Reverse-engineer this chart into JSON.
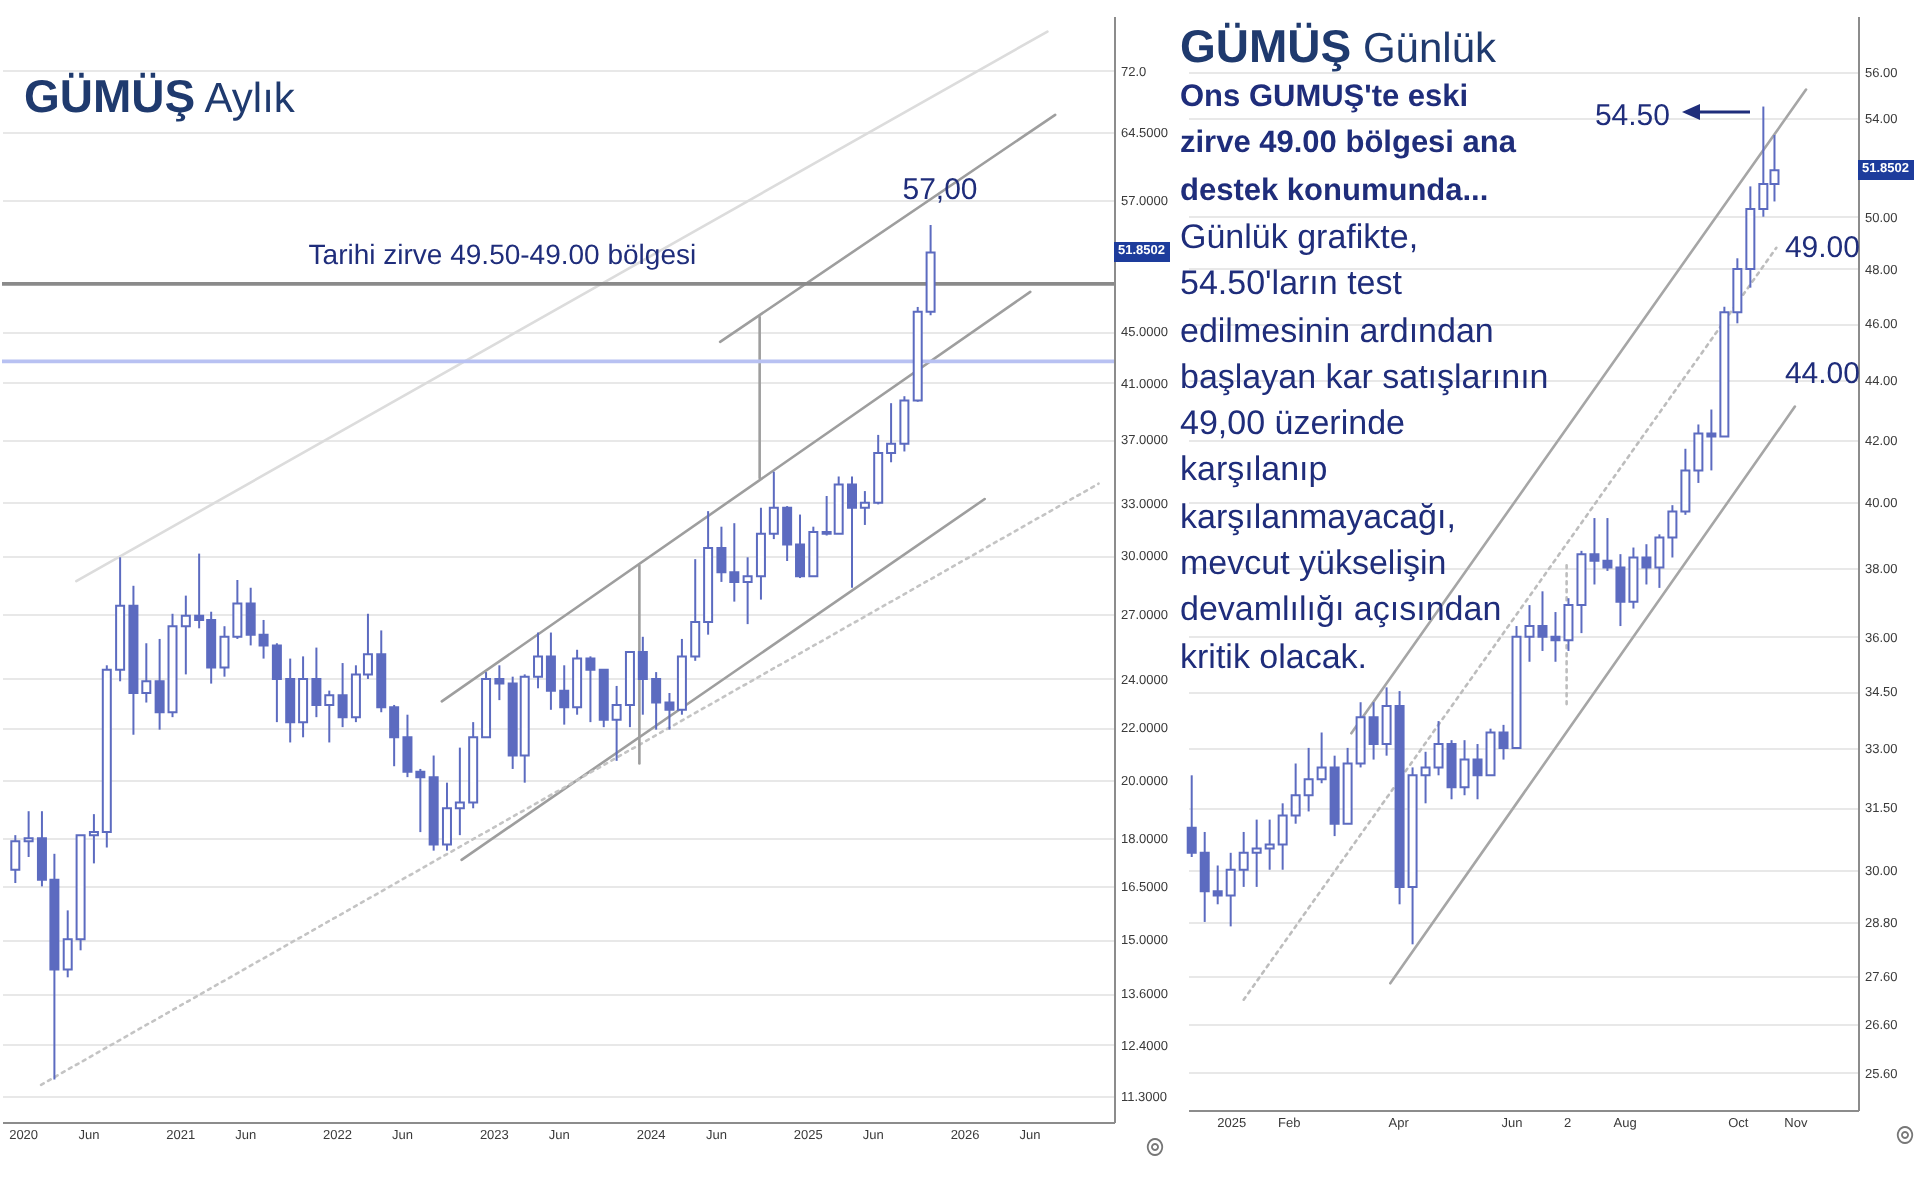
{
  "chart_data": [
    {
      "type": "candlestick",
      "title": "GÜMÜŞ Aylık",
      "color": "#5c6bc0",
      "x": [
        "2019-12-15",
        "2020-01-15",
        "2020-02-15",
        "2020-03-15",
        "2020-04-15",
        "2020-05-15",
        "2020-06-15",
        "2020-07-15",
        "2020-08-15",
        "2020-09-15",
        "2020-10-15",
        "2020-11-15",
        "2020-12-15",
        "2021-01-15",
        "2021-02-15",
        "2021-03-15",
        "2021-04-15",
        "2021-05-15",
        "2021-06-15",
        "2021-07-15",
        "2021-08-15",
        "2021-09-15",
        "2021-10-15",
        "2021-11-15",
        "2021-12-15",
        "2022-01-15",
        "2022-02-15",
        "2022-03-15",
        "2022-04-15",
        "2022-05-15",
        "2022-06-15",
        "2022-07-15",
        "2022-08-15",
        "2022-09-15",
        "2022-10-15",
        "2022-11-15",
        "2022-12-15",
        "2023-01-15",
        "2023-02-15",
        "2023-03-15",
        "2023-04-15",
        "2023-05-15",
        "2023-06-15",
        "2023-07-15",
        "2023-08-15",
        "2023-09-15",
        "2023-10-15",
        "2023-11-15",
        "2023-12-15",
        "2024-01-15",
        "2024-02-15",
        "2024-03-15",
        "2024-04-15",
        "2024-05-15",
        "2024-06-15",
        "2024-07-15",
        "2024-08-15",
        "2024-09-15",
        "2024-10-15",
        "2024-11-15",
        "2024-12-15",
        "2025-01-15",
        "2025-02-15",
        "2025-03-15",
        "2025-04-15",
        "2025-05-15",
        "2025-06-15",
        "2025-07-15",
        "2025-08-15",
        "2025-09-15",
        "2025-10-15"
      ],
      "ohlc": [
        [
          17.0,
          18.1,
          16.6,
          17.9
        ],
        [
          17.9,
          18.9,
          17.4,
          18.0
        ],
        [
          18.0,
          18.9,
          16.5,
          16.7
        ],
        [
          16.7,
          17.5,
          11.64,
          14.2
        ],
        [
          14.2,
          15.8,
          14.0,
          15.0
        ],
        [
          15.0,
          18.1,
          14.7,
          18.1
        ],
        [
          18.1,
          18.8,
          17.2,
          18.2
        ],
        [
          18.2,
          24.6,
          17.7,
          24.4
        ],
        [
          24.4,
          29.9,
          23.9,
          27.4
        ],
        [
          27.4,
          28.4,
          21.7,
          23.4
        ],
        [
          23.4,
          25.6,
          23.0,
          23.9
        ],
        [
          23.9,
          25.8,
          21.9,
          22.6
        ],
        [
          22.6,
          27.0,
          22.4,
          26.4
        ],
        [
          26.4,
          27.9,
          24.2,
          26.9
        ],
        [
          26.9,
          30.1,
          26.3,
          26.7
        ],
        [
          26.7,
          27.1,
          23.8,
          24.5
        ],
        [
          24.5,
          26.4,
          24.1,
          25.9
        ],
        [
          25.9,
          28.7,
          25.8,
          27.5
        ],
        [
          27.5,
          28.3,
          25.5,
          26.0
        ],
        [
          26.0,
          26.7,
          24.9,
          25.5
        ],
        [
          25.5,
          25.6,
          22.2,
          24.0
        ],
        [
          24.0,
          24.9,
          21.4,
          22.2
        ],
        [
          22.2,
          25.0,
          21.6,
          24.0
        ],
        [
          24.0,
          25.4,
          22.4,
          22.9
        ],
        [
          22.9,
          23.5,
          21.4,
          23.3
        ],
        [
          23.3,
          24.7,
          22.0,
          22.4
        ],
        [
          22.4,
          24.6,
          22.2,
          24.2
        ],
        [
          24.2,
          27.0,
          24.0,
          25.1
        ],
        [
          25.1,
          26.2,
          22.6,
          22.8
        ],
        [
          22.8,
          22.9,
          20.5,
          21.6
        ],
        [
          21.6,
          22.5,
          20.1,
          20.3
        ],
        [
          20.3,
          20.4,
          18.2,
          20.1
        ],
        [
          20.1,
          20.9,
          17.6,
          17.8
        ],
        [
          17.8,
          19.9,
          17.6,
          19.0
        ],
        [
          19.0,
          21.2,
          18.1,
          19.2
        ],
        [
          19.2,
          22.2,
          19.0,
          21.6
        ],
        [
          21.6,
          24.3,
          21.6,
          24.0
        ],
        [
          24.0,
          24.6,
          23.1,
          23.8
        ],
        [
          23.8,
          24.1,
          20.4,
          20.9
        ],
        [
          20.9,
          24.2,
          19.9,
          24.1
        ],
        [
          24.1,
          26.1,
          23.6,
          25.0
        ],
        [
          25.0,
          26.1,
          22.7,
          23.5
        ],
        [
          23.5,
          24.6,
          22.1,
          22.8
        ],
        [
          22.8,
          25.3,
          22.5,
          24.9
        ],
        [
          24.9,
          25.0,
          22.2,
          24.4
        ],
        [
          24.4,
          24.4,
          22.0,
          22.3
        ],
        [
          22.3,
          23.7,
          20.7,
          22.9
        ],
        [
          22.9,
          25.2,
          22.0,
          25.2
        ],
        [
          25.2,
          25.9,
          22.5,
          24.0
        ],
        [
          24.0,
          24.3,
          21.9,
          23.0
        ],
        [
          23.0,
          23.4,
          21.9,
          22.7
        ],
        [
          22.7,
          25.8,
          22.5,
          25.0
        ],
        [
          25.0,
          29.8,
          24.8,
          26.6
        ],
        [
          26.6,
          32.5,
          26.0,
          30.4
        ],
        [
          30.4,
          31.6,
          28.6,
          29.1
        ],
        [
          29.1,
          31.8,
          27.6,
          28.6
        ],
        [
          28.6,
          29.9,
          26.5,
          28.9
        ],
        [
          28.9,
          32.7,
          27.7,
          31.2
        ],
        [
          31.2,
          34.9,
          30.9,
          32.7
        ],
        [
          32.7,
          32.8,
          29.7,
          30.6
        ],
        [
          30.6,
          32.3,
          28.8,
          28.9
        ],
        [
          28.9,
          31.6,
          28.9,
          31.3
        ],
        [
          31.3,
          33.4,
          31.1,
          31.2
        ],
        [
          31.2,
          34.6,
          31.2,
          34.1
        ],
        [
          34.1,
          34.6,
          28.3,
          32.7
        ],
        [
          32.7,
          33.7,
          31.7,
          33.0
        ],
        [
          33.0,
          37.3,
          32.9,
          36.1
        ],
        [
          36.1,
          39.5,
          35.5,
          36.7
        ],
        [
          36.7,
          40.0,
          36.2,
          39.7
        ],
        [
          39.7,
          47.0,
          39.6,
          46.6
        ],
        [
          46.6,
          54.5,
          46.3,
          51.85
        ]
      ],
      "series": [
        {
          "type": "line",
          "x": [
            "2024-06-12",
            "2026-08-01"
          ],
          "values": [
            44.13,
            66.5
          ],
          "color": "#9e9e9e",
          "line_style": "solid"
        },
        {
          "type": "line",
          "x": [
            "2022-09-03",
            "2026-06-04"
          ],
          "values": [
            23.05,
            48.3
          ],
          "color": "#9e9e9e",
          "line_style": "solid"
        },
        {
          "type": "line",
          "x": [
            "2022-10-19",
            "2026-02-18"
          ],
          "values": [
            17.31,
            33.22
          ],
          "color": "#9e9e9e",
          "line_style": "solid"
        },
        {
          "type": "line",
          "x": [
            "2020-05-05",
            "2026-07-14"
          ],
          "values": [
            28.64,
            77.3
          ],
          "color": "#dcdcdc",
          "line_style": "solid"
        },
        {
          "type": "line",
          "x": [
            "2020-02-13",
            "2026-11-10"
          ],
          "values": [
            11.53,
            34.15
          ],
          "color": "#c4c4c4",
          "line_style": "dotted"
        },
        {
          "type": "line",
          "x": [
            "2024-09-12",
            "2024-09-12"
          ],
          "values": [
            46.15,
            34.5
          ],
          "color": "#9e9e9e",
          "line_style": "solid"
        },
        {
          "type": "line",
          "x": [
            "2023-12-07",
            "2023-12-07"
          ],
          "values": [
            29.46,
            20.6
          ],
          "color": "#9e9e9e",
          "line_style": "solid"
        }
      ],
      "xlim": [
        "2019-11-14",
        "2026-12-16"
      ],
      "xticks": [
        {
          "value": "2020-01-01",
          "label": "2020"
        },
        {
          "value": "2020-06-01",
          "label": "Jun"
        },
        {
          "value": "2021-01-01",
          "label": "2021"
        },
        {
          "value": "2021-06-01",
          "label": "Jun"
        },
        {
          "value": "2022-01-01",
          "label": "2022"
        },
        {
          "value": "2022-06-01",
          "label": "Jun"
        },
        {
          "value": "2023-01-01",
          "label": "2023"
        },
        {
          "value": "2023-06-01",
          "label": "Jun"
        },
        {
          "value": "2024-01-01",
          "label": "2024"
        },
        {
          "value": "2024-06-01",
          "label": "Jun"
        },
        {
          "value": "2025-01-01",
          "label": "2025"
        },
        {
          "value": "2025-06-01",
          "label": "Jun"
        },
        {
          "value": "2026-01-01",
          "label": "2026"
        },
        {
          "value": "2026-06-01",
          "label": "Jun"
        }
      ],
      "ylim": [
        10.78,
        79.5
      ],
      "yticks": [
        {
          "value": 72,
          "label": "72.0"
        },
        {
          "value": 64.5,
          "label": "64.5000"
        },
        {
          "value": 57,
          "label": "57.0000"
        },
        {
          "value": 45,
          "label": "45.0000"
        },
        {
          "value": 41,
          "label": "41.0000"
        },
        {
          "value": 37,
          "label": "37.0000"
        },
        {
          "value": 33,
          "label": "33.0000"
        },
        {
          "value": 30,
          "label": "30.0000"
        },
        {
          "value": 27,
          "label": "27.0000"
        },
        {
          "value": 24,
          "label": "24.0000"
        },
        {
          "value": 22,
          "label": "22.0000"
        },
        {
          "value": 20,
          "label": "20.0000"
        },
        {
          "value": 18,
          "label": "18.0000"
        },
        {
          "value": 16.5,
          "label": "16.5000"
        },
        {
          "value": 15,
          "label": "15.0000"
        },
        {
          "value": 13.6,
          "label": "13.6000"
        },
        {
          "value": 12.4,
          "label": "12.4000"
        },
        {
          "value": 11.3,
          "label": "11.3000"
        }
      ],
      "log": true,
      "grid": "y",
      "ref_lines": [
        {
          "axis": "y",
          "value": 49,
          "label": "Tarihi zirve 49.50-49.00 bölgesi",
          "color": "#8a8a8a"
        },
        {
          "axis": "y",
          "value": 42.6,
          "color": "#b8c1f2"
        }
      ],
      "annotations": [
        "57,00",
        "51.8502"
      ]
    },
    {
      "type": "candlestick",
      "title": "GÜMÜŞ Günlük",
      "subtitle": "Ons GUMUŞ'te eski zirve 49.00 bölgesi ana destek konumunda...",
      "color": "#5c6bc0",
      "x": [
        "2024-12-11",
        "2024-12-18",
        "2024-12-25",
        "2025-01-01",
        "2025-01-08",
        "2025-01-15",
        "2025-01-22",
        "2025-01-29",
        "2025-02-05",
        "2025-02-12",
        "2025-02-19",
        "2025-02-26",
        "2025-03-05",
        "2025-03-12",
        "2025-03-19",
        "2025-03-26",
        "2025-04-02",
        "2025-04-09",
        "2025-04-16",
        "2025-04-23",
        "2025-04-30",
        "2025-05-07",
        "2025-05-14",
        "2025-05-21",
        "2025-05-28",
        "2025-06-04",
        "2025-06-11",
        "2025-06-18",
        "2025-06-25",
        "2025-07-02",
        "2025-07-09",
        "2025-07-16",
        "2025-07-23",
        "2025-07-30",
        "2025-08-06",
        "2025-08-13",
        "2025-08-20",
        "2025-08-27",
        "2025-09-03",
        "2025-09-10",
        "2025-09-17",
        "2025-09-24",
        "2025-10-01",
        "2025-10-08",
        "2025-10-15",
        "2025-10-21"
      ],
      "ohlc": [
        [
          31.0,
          32.3,
          30.3,
          30.4
        ],
        [
          30.4,
          30.9,
          28.8,
          29.5
        ],
        [
          29.5,
          30.1,
          29.2,
          29.4
        ],
        [
          29.4,
          30.4,
          28.7,
          30.0
        ],
        [
          30.0,
          30.9,
          29.6,
          30.4
        ],
        [
          30.4,
          31.2,
          29.6,
          30.5
        ],
        [
          30.5,
          31.2,
          30.0,
          30.6
        ],
        [
          30.6,
          31.6,
          30.0,
          31.3
        ],
        [
          31.3,
          32.6,
          31.1,
          31.8
        ],
        [
          31.8,
          33.0,
          31.4,
          32.2
        ],
        [
          32.2,
          33.4,
          32.1,
          32.5
        ],
        [
          32.5,
          32.8,
          30.8,
          31.1
        ],
        [
          31.1,
          33.0,
          31.1,
          32.6
        ],
        [
          32.6,
          34.2,
          32.5,
          33.8
        ],
        [
          33.8,
          34.2,
          32.7,
          33.1
        ],
        [
          33.1,
          34.6,
          32.8,
          34.1
        ],
        [
          34.1,
          34.5,
          29.2,
          29.6
        ],
        [
          29.6,
          32.5,
          28.3,
          32.3
        ],
        [
          32.3,
          32.9,
          31.6,
          32.5
        ],
        [
          32.5,
          33.7,
          32.3,
          33.1
        ],
        [
          33.1,
          33.2,
          31.7,
          32.0
        ],
        [
          32.0,
          33.2,
          31.8,
          32.7
        ],
        [
          32.7,
          33.1,
          31.7,
          32.3
        ],
        [
          32.3,
          33.5,
          32.3,
          33.4
        ],
        [
          33.4,
          33.6,
          32.7,
          33.0
        ],
        [
          33.0,
          36.3,
          33.0,
          36.0
        ],
        [
          36.0,
          36.9,
          35.3,
          36.3
        ],
        [
          36.3,
          37.3,
          35.6,
          36.0
        ],
        [
          36.0,
          36.7,
          35.3,
          35.9
        ],
        [
          35.9,
          37.1,
          35.6,
          36.9
        ],
        [
          36.9,
          38.5,
          36.1,
          38.4
        ],
        [
          38.4,
          39.5,
          37.5,
          38.2
        ],
        [
          38.2,
          39.5,
          37.9,
          38.0
        ],
        [
          38.0,
          38.4,
          36.3,
          37.0
        ],
        [
          37.0,
          38.6,
          36.8,
          38.3
        ],
        [
          38.3,
          38.7,
          37.5,
          38.0
        ],
        [
          38.0,
          39.0,
          37.4,
          38.9
        ],
        [
          38.9,
          39.9,
          38.3,
          39.7
        ],
        [
          39.7,
          41.7,
          39.6,
          41.0
        ],
        [
          41.0,
          42.5,
          40.6,
          42.2
        ],
        [
          42.2,
          43.0,
          41.0,
          42.1
        ],
        [
          42.1,
          46.6,
          42.1,
          46.4
        ],
        [
          46.4,
          48.4,
          46.0,
          48.0
        ],
        [
          48.0,
          51.2,
          47.3,
          50.3
        ],
        [
          50.3,
          54.5,
          50.0,
          51.3
        ],
        [
          51.3,
          53.3,
          50.6,
          51.85
        ]
      ],
      "series": [
        {
          "type": "line",
          "x": [
            "2025-03-07",
            "2025-11-07"
          ],
          "values": [
            33.38,
            55.23
          ],
          "color": "#a6a6a6",
          "line_style": "solid"
        },
        {
          "type": "line",
          "x": [
            "2025-01-08",
            "2025-10-22"
          ],
          "values": [
            27.1,
            48.8
          ],
          "color": "#bdbdbd",
          "line_style": "dotted"
        },
        {
          "type": "line",
          "x": [
            "2025-03-28",
            "2025-11-01"
          ],
          "values": [
            27.45,
            43.1
          ],
          "color": "#a6a6a6",
          "line_style": "solid"
        },
        {
          "type": "line",
          "x": [
            "2025-07-01",
            "2025-07-01"
          ],
          "values": [
            38.07,
            34.15
          ],
          "color": "#bdbdbd",
          "line_style": "dotted"
        }
      ],
      "xlim": [
        "2024-12-09",
        "2025-12-05"
      ],
      "xticks": [
        {
          "value": "2025-01-01",
          "label": "2025"
        },
        {
          "value": "2025-02-01",
          "label": "Feb"
        },
        {
          "value": "2025-04-01",
          "label": "Apr"
        },
        {
          "value": "2025-06-01",
          "label": "Jun"
        },
        {
          "value": "2025-07-01",
          "label": "2"
        },
        {
          "value": "2025-08-01",
          "label": "Aug"
        },
        {
          "value": "2025-10-01",
          "label": "Oct"
        },
        {
          "value": "2025-11-01",
          "label": "Nov"
        }
      ],
      "ylim": [
        24.86,
        58.5
      ],
      "yticks": [
        {
          "value": 56,
          "label": "56.00"
        },
        {
          "value": 54,
          "label": "54.00"
        },
        {
          "value": 50,
          "label": "50.00"
        },
        {
          "value": 48,
          "label": "48.00"
        },
        {
          "value": 46,
          "label": "46.00"
        },
        {
          "value": 44,
          "label": "44.00"
        },
        {
          "value": 42,
          "label": "42.00"
        },
        {
          "value": 40,
          "label": "40.00"
        },
        {
          "value": 38,
          "label": "38.00"
        },
        {
          "value": 36,
          "label": "36.00"
        },
        {
          "value": 34.5,
          "label": "34.50"
        },
        {
          "value": 33,
          "label": "33.00"
        },
        {
          "value": 31.5,
          "label": "31.50"
        },
        {
          "value": 30,
          "label": "30.00"
        },
        {
          "value": 28.8,
          "label": "28.80"
        },
        {
          "value": 27.6,
          "label": "27.60"
        },
        {
          "value": 26.6,
          "label": "26.60"
        },
        {
          "value": 25.6,
          "label": "25.60"
        }
      ],
      "log": true,
      "grid": "y",
      "annotations": [
        "Günlük grafikte, 54.50'ların test edilmesinin ardından başlayan kar satışlarının 49,00 üzerinde karşılanıp karşılanmayacağı, mevcut yükselişin devamlılığı açısından kritik olacak.",
        "54.50",
        "49.00",
        "44.00",
        "51.8502"
      ]
    }
  ]
}
